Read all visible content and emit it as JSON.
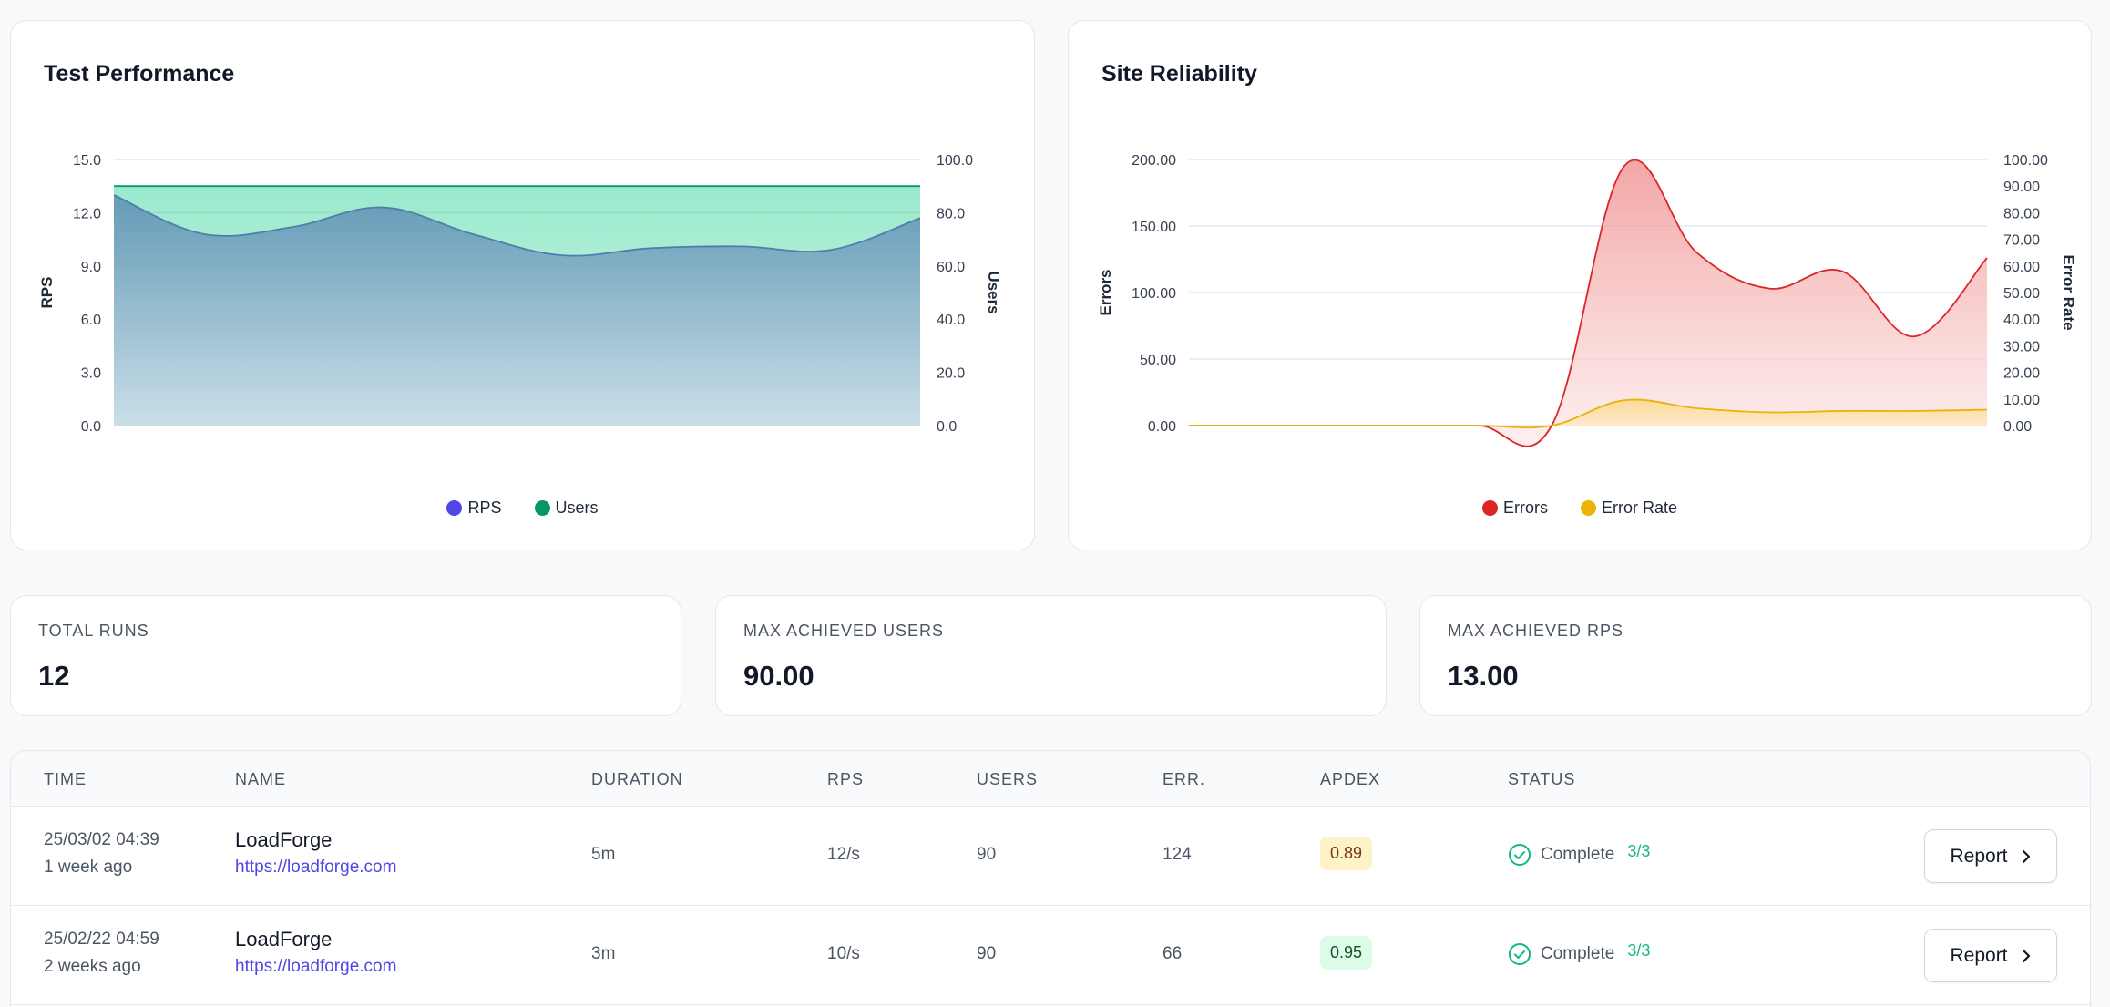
{
  "charts": {
    "performance": {
      "title": "Test Performance",
      "legend": [
        {
          "label": "RPS",
          "color": "#4f46e5"
        },
        {
          "label": "Users",
          "color": "#059669"
        }
      ]
    },
    "reliability": {
      "title": "Site Reliability",
      "legend": [
        {
          "label": "Errors",
          "color": "#dc2626"
        },
        {
          "label": "Error Rate",
          "color": "#eab308"
        }
      ]
    }
  },
  "chart_data": [
    {
      "type": "area",
      "title": "Test Performance",
      "ylabel": "RPS",
      "y2label": "Users",
      "ylim": [
        0,
        15
      ],
      "y2lim": [
        0,
        100
      ],
      "y_ticks": [
        "0.0",
        "3.0",
        "6.0",
        "9.0",
        "12.0",
        "15.0"
      ],
      "y2_ticks": [
        "0.0",
        "20.0",
        "40.0",
        "60.0",
        "80.0",
        "100.0"
      ],
      "grid": true,
      "legend_position": "bottom",
      "series": [
        {
          "name": "RPS",
          "axis": "left",
          "color": "#4f7fa8",
          "values": [
            13.0,
            10.8,
            11.2,
            12.3,
            10.8,
            9.6,
            10.0,
            10.1,
            9.9,
            11.7
          ]
        },
        {
          "name": "Users",
          "axis": "right",
          "color": "#059669",
          "values": [
            90,
            90,
            90,
            90,
            90,
            90,
            90,
            90,
            90,
            90
          ]
        }
      ]
    },
    {
      "type": "area",
      "title": "Site Reliability",
      "ylabel": "Errors",
      "y2label": "Error Rate",
      "ylim": [
        0,
        200
      ],
      "y2lim": [
        0,
        100
      ],
      "y_ticks": [
        "0.00",
        "50.00",
        "100.00",
        "150.00",
        "200.00"
      ],
      "y2_ticks": [
        "0.00",
        "10.00",
        "20.00",
        "30.00",
        "40.00",
        "50.00",
        "60.00",
        "70.00",
        "80.00",
        "90.00",
        "100.00"
      ],
      "grid": true,
      "legend_position": "bottom",
      "series": [
        {
          "name": "Errors",
          "axis": "left",
          "color": "#dc2626",
          "values": [
            0,
            0,
            0,
            0,
            0,
            0,
            195,
            130,
            103,
            116,
            67,
            126
          ]
        },
        {
          "name": "Error Rate",
          "axis": "right",
          "color": "#eab308",
          "values": [
            0,
            0,
            0,
            0,
            0,
            0,
            9.5,
            6.5,
            5,
            5.5,
            5.5,
            6
          ]
        }
      ]
    }
  ],
  "stats": [
    {
      "label": "TOTAL RUNS",
      "value": "12"
    },
    {
      "label": "MAX ACHIEVED USERS",
      "value": "90.00"
    },
    {
      "label": "MAX ACHIEVED RPS",
      "value": "13.00"
    }
  ],
  "table": {
    "headers": [
      "TIME",
      "NAME",
      "DURATION",
      "RPS",
      "USERS",
      "ERR.",
      "APDEX",
      "STATUS"
    ],
    "rows": [
      {
        "time": "25/03/02 04:39",
        "ago": "1 week ago",
        "name": "LoadForge",
        "url": "https://loadforge.com",
        "duration": "5m",
        "rps": "12/s",
        "users": "90",
        "err": "124",
        "apdex": "0.89",
        "apdex_bg": "#fef3c7",
        "apdex_color": "#78350f",
        "status": "Complete",
        "checks": "3/3",
        "action": "Report"
      },
      {
        "time": "25/02/22 04:59",
        "ago": "2 weeks ago",
        "name": "LoadForge",
        "url": "https://loadforge.com",
        "duration": "3m",
        "rps": "10/s",
        "users": "90",
        "err": "66",
        "apdex": "0.95",
        "apdex_bg": "#dcfce7",
        "apdex_color": "#14532d",
        "status": "Complete",
        "checks": "3/3",
        "action": "Report"
      }
    ]
  }
}
